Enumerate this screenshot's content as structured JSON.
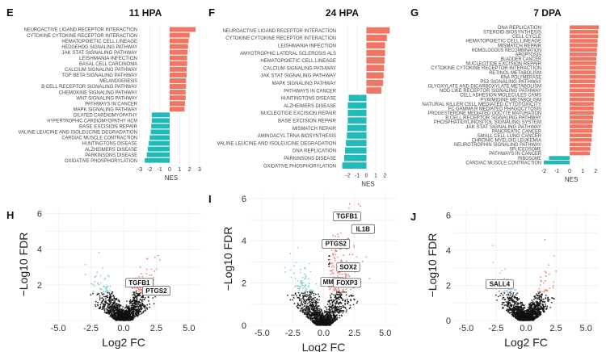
{
  "chart_data": [
    {
      "panel": "E",
      "title": "11 HPA",
      "type": "bar",
      "xlabel": "NES",
      "xlim": [
        -3,
        3
      ],
      "xticks": [
        -3,
        -2,
        -1,
        0,
        1,
        2,
        3
      ],
      "grid": true,
      "colors": {
        "positive": "#f07563",
        "negative": "#22b9b9"
      },
      "categories": [
        "NEUROACTIVE LIGAND RECEPTOR INTERACTION",
        "CYTOKINE CYTOKINE RECEPTOR INTERACTION",
        "HEMATOPOIETIC CELL LINEAGE",
        "HEDGEHOG SIGNALING PATHWAY",
        "JAK STAT SIGNALING PATHWAY",
        "LEISHMANIA INFECTION",
        "BASAL CELL CARCINOMA",
        "CALCIUM SIGNALING PATHWAY",
        "TGF BETA SIGNALING PATHWAY",
        "MELANOGENESIS",
        "B CELL RECEPTOR SIGNALING PATHWAY",
        "CHEMOKINE SIGNALING PATHWAY",
        "WNT SIGNALING PATHWAY",
        "PATHWAYS IN CANCER",
        "MAPK SIGNALING PATHWAY",
        "DILATED CARDIOMYOPATHY",
        "HYPERTROPHIC CARDIOMYOPATHY HCM",
        "BASE EXCISION REPAIR",
        "VALINE LEUCINE AND ISOLEUCINE DEGRADATION",
        "CARDIAC MUSCLE CONTRACTION",
        "HUNTINGTONS DISEASE",
        "ALZHEIMERS DISEASE",
        "PARKINSONS DISEASE",
        "OXIDATIVE PHOSPHORYLATION"
      ],
      "values": [
        2.6,
        2.0,
        1.9,
        1.85,
        1.8,
        1.75,
        1.75,
        1.7,
        1.7,
        1.65,
        1.65,
        1.6,
        1.6,
        1.55,
        1.5,
        -1.8,
        -1.8,
        -1.85,
        -1.9,
        -2.0,
        -2.1,
        -2.2,
        -2.3,
        -2.5
      ]
    },
    {
      "panel": "F",
      "title": "24 HPA",
      "type": "bar",
      "xlabel": "NES",
      "xlim": [
        -3,
        3
      ],
      "xticks": [
        -2,
        -1,
        0,
        1,
        2
      ],
      "grid": true,
      "colors": {
        "positive": "#f07563",
        "negative": "#22b9b9"
      },
      "categories": [
        "NEUROACTIVE LIGAND RECEPTOR INTERACTION",
        "CYTOKINE CYTOKINE RECEPTOR INTERACTION",
        "LEISHMANIA INFECTION",
        "AMYOTROPHIC LATERAL SCLEROSIS ALS",
        "HEMATOPOIETIC CELL LINEAGE",
        "CALCIUM SIGNALING PATHWAY",
        "JAK STAT SIGNALING PATHWAY",
        "MAPK SIGNALING PATHWAY",
        "PATHWAYS IN CANCER",
        "HUNTINGTONS DISEASE",
        "ALZHEIMERS DISEASE",
        "NUCLEOTIDE EXCISION REPAIR",
        "BASE EXCISION REPAIR",
        "MISMATCH REPAIR",
        "AMINOACYL TRNA BIOSYNTHESIS",
        "VALINE LEUCINE AND ISOLEUCINE DEGRADATION",
        "DNA REPLICATION",
        "PARKINSONS DISEASE",
        "OXIDATIVE PHOSPHORYLATION"
      ],
      "values": [
        2.5,
        2.2,
        2.0,
        2.0,
        1.95,
        1.9,
        1.85,
        1.8,
        1.6,
        -1.9,
        -2.0,
        -2.0,
        -2.0,
        -2.05,
        -2.1,
        -2.2,
        -2.3,
        -2.4,
        -2.6
      ]
    },
    {
      "panel": "G",
      "title": "7 DPA",
      "type": "bar",
      "xlabel": "NES",
      "xlim": [
        -2,
        2.3
      ],
      "xticks": [
        -2,
        -1,
        0,
        1,
        2
      ],
      "grid": true,
      "colors": {
        "positive": "#f07563",
        "negative": "#22b9b9"
      },
      "categories": [
        "DNA REPLICATION",
        "STEROID BIOSYNTHESIS",
        "CELL CYCLE",
        "HEMATOPOIETIC CELL LINEAGE",
        "MISMATCH REPAIR",
        "HOMOLOGOUS RECOMBINATION",
        "APOPTOSIS",
        "BLADDER CANCER",
        "NUCLEOTIDE EXCISION REPAIR",
        "CYTOKINE CYTOKINE RECEPTOR INTERACTION",
        "RETINOL METABOLISM",
        "RNA POLYMERASE",
        "P53 SIGNALING PATHWAY",
        "GLYOXYLATE AND DICARBOXYLATE METABOLISM",
        "NOD LIKE RECEPTOR SIGNALING PATHWAY",
        "CELL ADHESION MOLECULES CAMS",
        "PYRIMIDINE METABOLISM",
        "NATURAL KILLER CELL MEDIATED CYTOTOXICITY",
        "FC GAMMA R MEDIATED PHAGOCYTOSIS",
        "PROGESTERONE MEDIATED OOCYTE MATURATION",
        "B CELL RECEPTOR SIGNALING PATHWAY",
        "PHOSPHATIDYLINOSITOL SIGNALING SYSTEM",
        "JAK STAT SIGNALING PATHWAY",
        "PANCREATIC CANCER",
        "SMALL CELL LUNG CANCER",
        "CHRONIC MYELOID LEUKEMIA",
        "NEUROTROPHIN SIGNALING PATHWAY",
        "SPLICEOSOME",
        "PATHWAYS IN CANCER",
        "RIBOSOME",
        "CARDIAC MUSCLE CONTRACTION"
      ],
      "values": [
        2.25,
        2.2,
        2.2,
        2.15,
        2.15,
        2.1,
        2.1,
        2.05,
        2.05,
        2.0,
        2.0,
        2.0,
        1.95,
        1.95,
        1.9,
        1.9,
        1.9,
        1.85,
        1.85,
        1.85,
        1.8,
        1.8,
        1.75,
        1.75,
        1.7,
        1.7,
        1.65,
        1.6,
        1.55,
        -1.6,
        -2.0
      ]
    },
    {
      "panel": "H",
      "type": "scatter",
      "xlabel": "Log2 FC",
      "ylabel": "−Log10 FDR",
      "xlim": [
        -6,
        6
      ],
      "ylim": [
        0,
        6.3
      ],
      "xticks": [
        -5,
        -2.5,
        0,
        2.5,
        5
      ],
      "xtick_labels": [
        "-5.0",
        "-2.5",
        "0.0",
        "2.5",
        "5.0"
      ],
      "yticks": [
        2,
        4,
        6
      ],
      "grid": true,
      "colors": {
        "up": "#f07563",
        "down": "#7bc7d0",
        "ns": "#111111"
      },
      "spread": 1.6,
      "labeled_genes": [
        {
          "gene": "TGFB1",
          "x": 1.2,
          "y": 2.05
        },
        {
          "gene": "PTGS2",
          "x": 2.5,
          "y": 1.6
        }
      ]
    },
    {
      "panel": "I",
      "type": "scatter",
      "xlabel": "Log2 FC",
      "ylabel": "−Log10 FDR",
      "xlim": [
        -6,
        6
      ],
      "ylim": [
        0,
        6.3
      ],
      "xticks": [
        -5,
        -2.5,
        0,
        2.5,
        5
      ],
      "xtick_labels": [
        "-5.0",
        "-2.5",
        "0.0",
        "2.5",
        "5.0"
      ],
      "yticks": [
        0,
        2,
        4,
        6
      ],
      "grid": true,
      "colors": {
        "up": "#f07563",
        "down": "#7bc7d0",
        "ns": "#111111"
      },
      "spread": 1.9,
      "labeled_genes": [
        {
          "gene": "TGFB1",
          "x": 1.9,
          "y": 5.1
        },
        {
          "gene": "IL1B",
          "x": 3.2,
          "y": 4.5
        },
        {
          "gene": "PTGS2",
          "x": 1.0,
          "y": 3.8
        },
        {
          "gene": "SOX2",
          "x": 2.0,
          "y": 2.7
        },
        {
          "gene": "MMP9",
          "x": 0.7,
          "y": 2.0
        },
        {
          "gene": "FOXP3",
          "x": 1.9,
          "y": 1.95
        }
      ]
    },
    {
      "panel": "J",
      "type": "scatter",
      "xlabel": "Log2 FC",
      "ylabel": "−Log10 FDR",
      "xlim": [
        -6,
        6
      ],
      "ylim": [
        0,
        6.3
      ],
      "xticks": [
        -5,
        -2.5,
        0,
        2.5,
        5
      ],
      "xtick_labels": [
        "-5.0",
        "-2.5",
        "0.0",
        "2.5",
        "5.0"
      ],
      "yticks": [
        0,
        2,
        4,
        6
      ],
      "grid": true,
      "colors": {
        "up": "#f07563",
        "down": "#7bc7d0",
        "ns": "#111111"
      },
      "spread": 1.5,
      "labeled_genes": [
        {
          "gene": "SALL4",
          "x": -2.2,
          "y": 2.0
        }
      ]
    }
  ]
}
